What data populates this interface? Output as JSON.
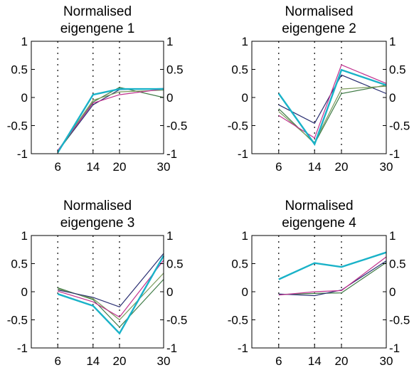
{
  "colors": {
    "cyan": "#19b2c8",
    "magenta": "#c0308e",
    "navy": "#2a2f72",
    "green": "#3e7a45",
    "olive": "#7a9a5a",
    "purple": "#7a5aa8"
  },
  "chart_data": [
    {
      "type": "line",
      "title": [
        "Normalised",
        "eigengene 1"
      ],
      "x": [
        6,
        14,
        20,
        30
      ],
      "xticks": [
        "6",
        "14",
        "20",
        "30"
      ],
      "ylim": [
        -1,
        1
      ],
      "yticks": [
        "1",
        "0.5",
        "0",
        "-0.5",
        "-1"
      ],
      "xlim": [
        0,
        30
      ],
      "vlines": [
        6,
        14,
        20
      ],
      "grid": false,
      "series": [
        {
          "color": "navy",
          "width": 1.2,
          "values": [
            -0.96,
            -0.13,
            0.14,
            0.16
          ]
        },
        {
          "color": "green",
          "width": 1.2,
          "values": [
            -0.97,
            -0.08,
            0.18,
            0.0
          ]
        },
        {
          "color": "olive",
          "width": 1.2,
          "values": [
            -0.95,
            -0.05,
            0.1,
            0.13
          ]
        },
        {
          "color": "magenta",
          "width": 1.2,
          "values": [
            -0.94,
            -0.1,
            0.05,
            0.15
          ]
        },
        {
          "color": "cyan",
          "width": 2.4,
          "values": [
            -0.98,
            0.05,
            0.15,
            0.15
          ]
        }
      ]
    },
    {
      "type": "line",
      "title": [
        "Normalised",
        "eigengene 2"
      ],
      "x": [
        6,
        14,
        20,
        30
      ],
      "xticks": [
        "6",
        "14",
        "20",
        "30"
      ],
      "ylim": [
        -1,
        1
      ],
      "yticks": [
        "1",
        "0.5",
        "0",
        "-0.5",
        "-1"
      ],
      "xlim": [
        0,
        30
      ],
      "vlines": [
        6,
        14,
        20
      ],
      "grid": false,
      "series": [
        {
          "color": "navy",
          "width": 1.2,
          "values": [
            -0.13,
            -0.46,
            0.4,
            0.07
          ]
        },
        {
          "color": "green",
          "width": 1.2,
          "values": [
            -0.2,
            -0.82,
            0.07,
            0.22
          ]
        },
        {
          "color": "olive",
          "width": 1.2,
          "values": [
            -0.25,
            -0.8,
            0.15,
            0.2
          ]
        },
        {
          "color": "magenta",
          "width": 1.2,
          "values": [
            -0.32,
            -0.72,
            0.58,
            0.25
          ]
        },
        {
          "color": "cyan",
          "width": 2.4,
          "values": [
            0.07,
            -0.83,
            0.49,
            0.22
          ]
        }
      ]
    },
    {
      "type": "line",
      "title": [
        "Normalised",
        "eigengene 3"
      ],
      "x": [
        6,
        14,
        20,
        30
      ],
      "xticks": [
        "6",
        "14",
        "20",
        "30"
      ],
      "ylim": [
        -1,
        1
      ],
      "yticks": [
        "1",
        "0.5",
        "0",
        "-0.5",
        "-1"
      ],
      "xlim": [
        0,
        30
      ],
      "vlines": [
        6,
        14,
        20
      ],
      "grid": false,
      "series": [
        {
          "color": "green",
          "width": 1.2,
          "values": [
            0.07,
            -0.14,
            -0.63,
            0.22
          ]
        },
        {
          "color": "olive",
          "width": 1.2,
          "values": [
            0.05,
            -0.12,
            -0.5,
            0.33
          ]
        },
        {
          "color": "navy",
          "width": 1.2,
          "values": [
            0.03,
            -0.1,
            -0.27,
            0.68
          ]
        },
        {
          "color": "magenta",
          "width": 1.2,
          "values": [
            0.01,
            -0.18,
            -0.45,
            0.56
          ]
        },
        {
          "color": "cyan",
          "width": 2.4,
          "values": [
            -0.04,
            -0.25,
            -0.74,
            0.64
          ]
        }
      ]
    },
    {
      "type": "line",
      "title": [
        "Normalised",
        "eigengene 4"
      ],
      "x": [
        6,
        14,
        20,
        30
      ],
      "xticks": [
        "6",
        "14",
        "20",
        "30"
      ],
      "ylim": [
        -1,
        1
      ],
      "yticks": [
        "1",
        "0.5",
        "0",
        "-0.5",
        "-1"
      ],
      "xlim": [
        0,
        30
      ],
      "vlines": [
        6,
        14,
        20
      ],
      "grid": false,
      "series": [
        {
          "color": "green",
          "width": 1.2,
          "values": [
            -0.05,
            -0.03,
            -0.02,
            0.52
          ]
        },
        {
          "color": "navy",
          "width": 1.2,
          "values": [
            -0.04,
            -0.07,
            0.03,
            0.55
          ]
        },
        {
          "color": "magenta",
          "width": 1.2,
          "values": [
            -0.06,
            0.0,
            0.02,
            0.62
          ]
        },
        {
          "color": "cyan",
          "width": 2.4,
          "values": [
            0.22,
            0.51,
            0.44,
            0.7
          ]
        }
      ]
    }
  ]
}
